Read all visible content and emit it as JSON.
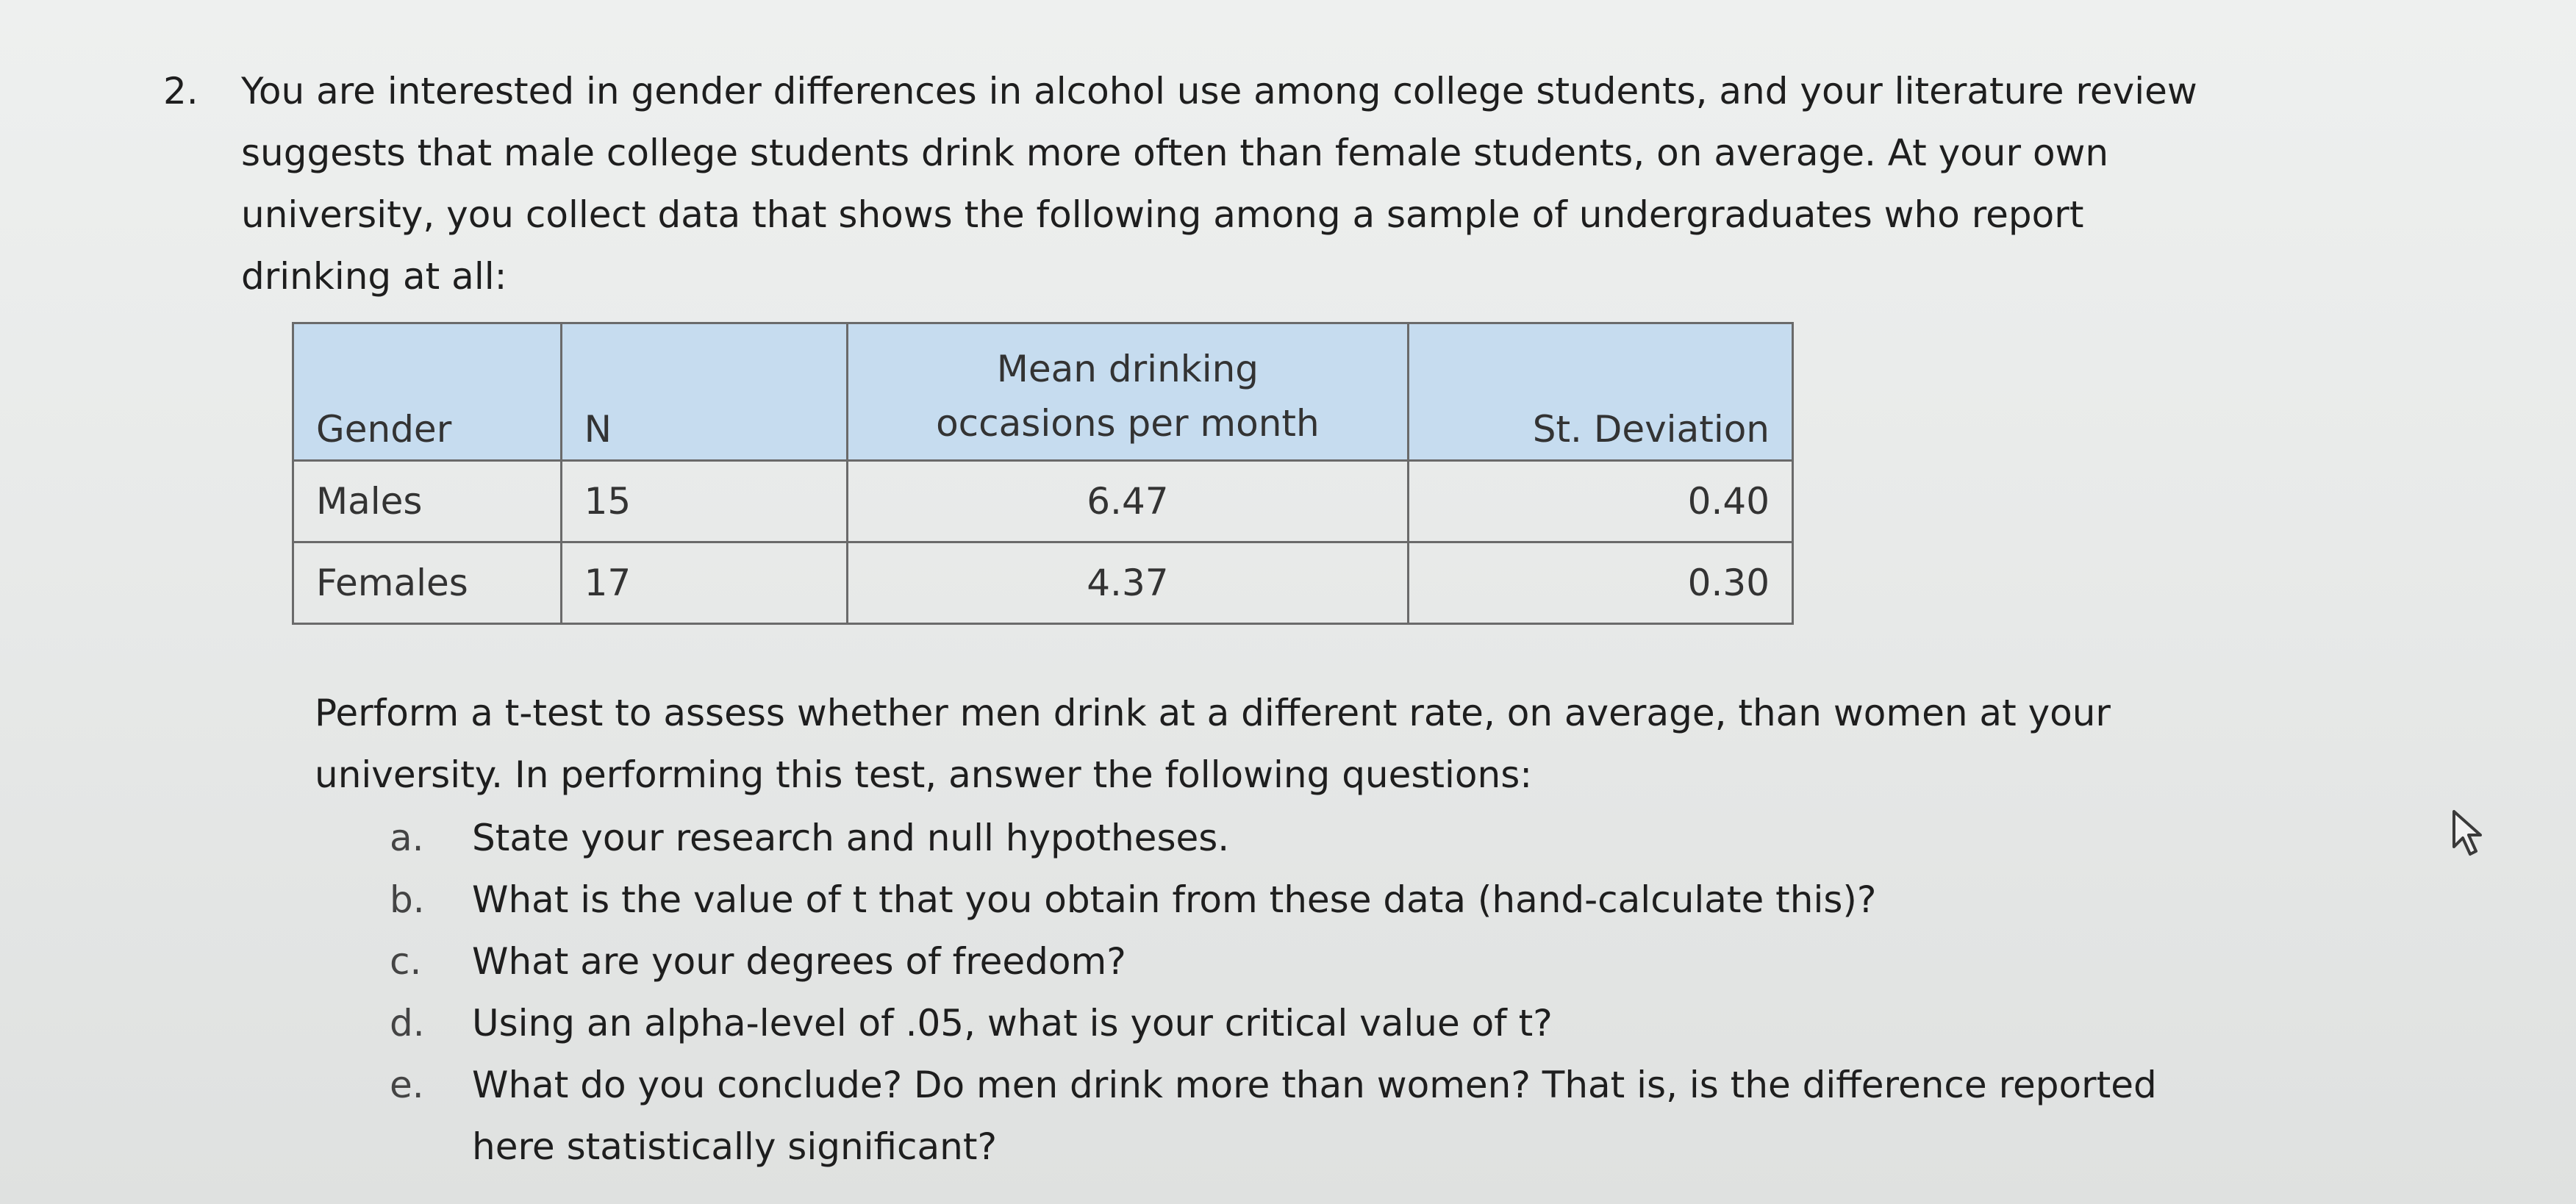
{
  "question": {
    "number": "2.",
    "lines": [
      "You are interested in gender differences in alcohol use among college students, and your literature review",
      "suggests that male college students drink more often than female students, on average. At your own",
      "university, you collect data that shows the following among a sample of undergraduates who report",
      "drinking at all:"
    ]
  },
  "table": {
    "headers": {
      "gender": "Gender",
      "n": "N",
      "mean_line1": "Mean drinking",
      "mean_line2": "occasions per month",
      "sd": "St. Deviation"
    },
    "rows": [
      {
        "gender": "Males",
        "n": "15",
        "mean": "6.47",
        "sd": "0.40"
      },
      {
        "gender": "Females",
        "n": "17",
        "mean": "4.37",
        "sd": "0.30"
      }
    ],
    "header_bg": "#c6dcef"
  },
  "instructions": {
    "lines": [
      "Perform a t-test to assess whether men drink at a different rate, on average, than women at your",
      "university. In performing this test, answer the following questions:"
    ]
  },
  "parts": [
    {
      "letter": "a.",
      "text": "State your research and null hypotheses."
    },
    {
      "letter": "b.",
      "text": "What is the value of t that you obtain from these data (hand-calculate this)?"
    },
    {
      "letter": "c.",
      "text": "What are your degrees of freedom?"
    },
    {
      "letter": "d.",
      "text": "Using an alpha-level of .05, what is your critical value of t?"
    },
    {
      "letter": "e.",
      "text": "What do you conclude? Do men drink more than women? That is, is the difference reported",
      "text_cont": "here statistically significant?"
    }
  ],
  "icons": {
    "cursor": "mouse-pointer-icon"
  }
}
